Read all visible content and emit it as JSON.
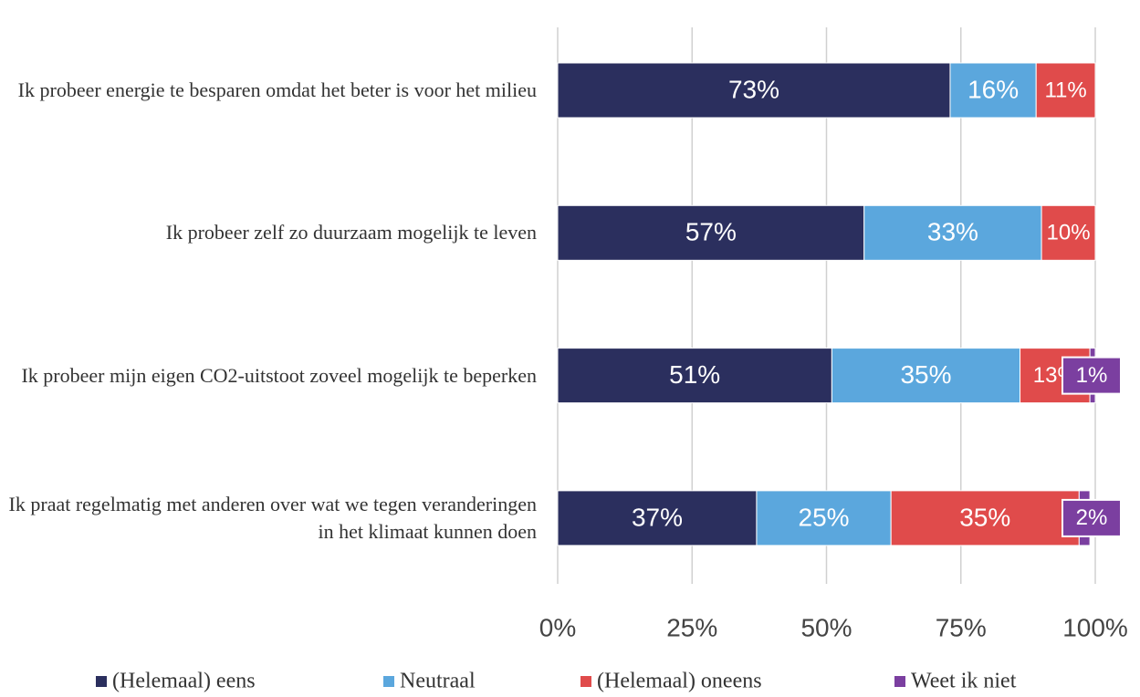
{
  "chart_data": {
    "type": "stacked-bar-horizontal",
    "categories": [
      "Ik probeer energie te besparen omdat het beter is voor het milieu",
      "Ik probeer zelf zo duurzaam mogelijk te leven",
      "Ik probeer mijn eigen CO2-uitstoot zoveel mogelijk te beperken",
      "Ik praat regelmatig met anderen over wat we tegen veranderingen in het klimaat kunnen doen"
    ],
    "series": [
      {
        "name": "(Helemaal) eens",
        "color": "#2b2f5e",
        "values": [
          73,
          57,
          51,
          37
        ],
        "value_labels": [
          "73%",
          "57%",
          "51%",
          "37%"
        ]
      },
      {
        "name": "Neutraal",
        "color": "#5ba7dd",
        "values": [
          16,
          33,
          35,
          25
        ],
        "value_labels": [
          "16%",
          "33%",
          "35%",
          "25%"
        ]
      },
      {
        "name": "(Helemaal) oneens",
        "color": "#e04b4b",
        "values": [
          11,
          10,
          13,
          35
        ],
        "value_labels": [
          "11%",
          "10%",
          "13%",
          "35%"
        ]
      },
      {
        "name": "Weet ik niet",
        "color": "#7b3fa0",
        "values": [
          null,
          null,
          1,
          2
        ],
        "value_labels": [
          null,
          null,
          "1%",
          "2%"
        ]
      }
    ],
    "xlim": [
      0,
      100
    ],
    "xticks": [
      {
        "value": 0,
        "label": "0%"
      },
      {
        "value": 25,
        "label": "25%"
      },
      {
        "value": 50,
        "label": "50%"
      },
      {
        "value": 75,
        "label": "75%"
      },
      {
        "value": 100,
        "label": "100%"
      }
    ],
    "grid": true,
    "legend": "bottom"
  }
}
